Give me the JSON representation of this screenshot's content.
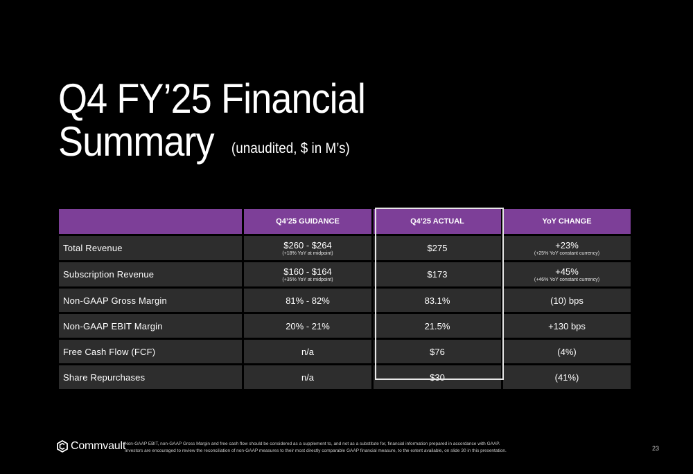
{
  "slide": {
    "title_line1": "Q4 FY’25 Financial",
    "title_line2": "Summary",
    "subtitle": "(unaudited, $ in M’s)",
    "page_number": "23"
  },
  "table": {
    "headers": [
      "",
      "Q4’25 GUIDANCE",
      "Q4’25 ACTUAL",
      "YoY CHANGE"
    ],
    "rows": [
      {
        "label": "Total Revenue",
        "guidance": "$260 - $264",
        "guidance_note": "(+18% YoY at midpoint)",
        "actual": "$275",
        "yoy": "+23%",
        "yoy_note": "(+25% YoY constant currency)"
      },
      {
        "label": "Subscription Revenue",
        "guidance": "$160 - $164",
        "guidance_note": "(+35% YoY at midpoint)",
        "actual": "$173",
        "yoy": "+45%",
        "yoy_note": "(+46% YoY constant currency)"
      },
      {
        "label": "Non-GAAP Gross Margin",
        "guidance": "81% - 82%",
        "actual": "83.1%",
        "yoy": "(10) bps"
      },
      {
        "label": "Non-GAAP EBIT Margin",
        "guidance": "20% - 21%",
        "actual": "21.5%",
        "yoy": "+130 bps"
      },
      {
        "label": "Free Cash Flow (FCF)",
        "guidance": "n/a",
        "actual": "$76",
        "yoy": "(4%)"
      },
      {
        "label": "Share Repurchases",
        "guidance": "n/a",
        "actual": "$30",
        "yoy": "(41%)"
      }
    ]
  },
  "footer": {
    "logo_text": "Commvault",
    "logo_icon": "commvault-hexagon-icon",
    "note_line1": "Non-GAAP EBIT, non-GAAP Gross Margin and free cash flow should be considered as a supplement to, and not as a substitute for, financial information prepared in accordance with GAAP.",
    "note_line2": "Investors are encouraged to review the reconciliation of non-GAAP measures to their most directly comparable GAAP financial measure, to the extent available, on slide 30 in this presentation."
  },
  "colors": {
    "background": "#000000",
    "header_purple": "#7d3f98",
    "row_gray": "#2d2d2d",
    "highlight_border": "#e8e8e8"
  }
}
